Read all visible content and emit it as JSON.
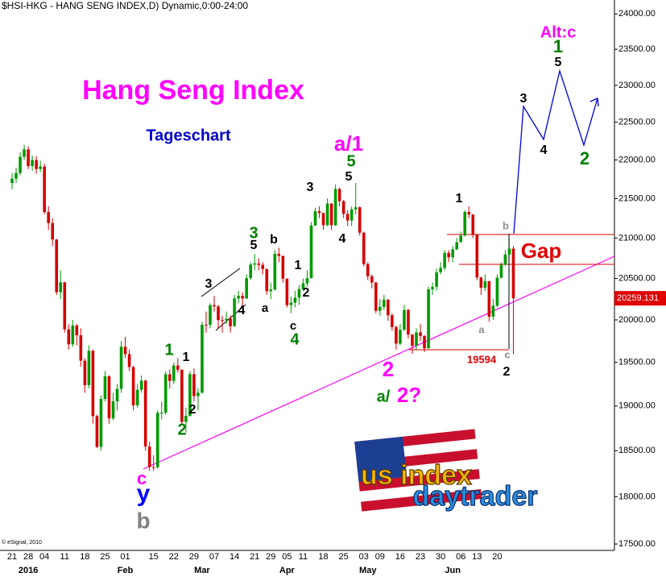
{
  "chart_data": {
    "type": "candlestick",
    "title": "$HSI-HKG - HANG SENG INDEX,D) Dynamic,0:00-24:00",
    "heading": "Hang Seng Index",
    "subheading": "Tageschart",
    "copyright": "© eSignal, 2010",
    "logo": [
      "us index",
      "daytrader"
    ],
    "categories": [
      "21",
      null,
      null,
      null,
      "28",
      null,
      null,
      null,
      "04",
      null,
      null,
      null,
      null,
      "11",
      null,
      null,
      null,
      null,
      "18",
      null,
      null,
      null,
      null,
      "25",
      null,
      null,
      null,
      null,
      "01",
      null,
      null,
      null,
      null,
      null,
      null,
      "15",
      null,
      null,
      null,
      null,
      "22",
      null,
      null,
      null,
      null,
      "29",
      null,
      null,
      null,
      null,
      "07",
      null,
      null,
      null,
      null,
      "14",
      null,
      null,
      null,
      null,
      "21",
      null,
      null,
      null,
      "29",
      null,
      null,
      null,
      "05",
      null,
      null,
      null,
      "11",
      null,
      null,
      null,
      null,
      "18",
      null,
      null,
      null,
      null,
      "25",
      null,
      null,
      null,
      null,
      "03",
      null,
      null,
      null,
      "09",
      null,
      null,
      null,
      null,
      "16",
      null,
      null,
      null,
      null,
      "23",
      null,
      null,
      null,
      null,
      "30",
      null,
      null,
      null,
      null,
      "06",
      null,
      null,
      null,
      "13",
      null,
      null,
      null,
      null,
      "20",
      null,
      null,
      null,
      null
    ],
    "months": [
      null,
      null,
      null,
      null,
      "2016",
      null,
      null,
      null,
      null,
      null,
      null,
      null,
      null,
      null,
      null,
      null,
      null,
      null,
      null,
      null,
      null,
      null,
      null,
      null,
      null,
      null,
      null,
      null,
      "Feb",
      null,
      null,
      null,
      null,
      null,
      null,
      null,
      null,
      null,
      null,
      null,
      null,
      null,
      null,
      null,
      null,
      null,
      null,
      "Mar",
      null,
      null,
      null,
      null,
      null,
      null,
      null,
      null,
      null,
      null,
      null,
      null,
      null,
      null,
      null,
      null,
      null,
      null,
      null,
      null,
      "Apr",
      null,
      null,
      null,
      null,
      null,
      null,
      null,
      null,
      null,
      null,
      null,
      null,
      null,
      null,
      null,
      null,
      null,
      null,
      null,
      "May",
      null,
      null,
      null,
      null,
      null,
      null,
      null,
      null,
      null,
      null,
      null,
      null,
      null,
      null,
      null,
      null,
      null,
      null,
      null,
      null,
      "Jun",
      null,
      null,
      null,
      null,
      null,
      null,
      null,
      null,
      null,
      null,
      null,
      null,
      null,
      null,
      null
    ],
    "series": [
      {
        "up_color": "#009a00",
        "down_color": "#d40000",
        "open": [
          21700,
          21756,
          21830,
          22041,
          22139,
          21920,
          21999,
          21882,
          21914,
          21327,
          21188,
          20981,
          20333,
          20453,
          19888,
          19711,
          19934,
          19817,
          19520,
          19237,
          19635,
          18886,
          18542,
          19080,
          19340,
          18860,
          19052,
          19195,
          19683,
          19596,
          19446,
          19007,
          19184,
          19289,
          18546,
          18320,
          18319,
          18924,
          18925,
          19363,
          19286,
          19464,
          19415,
          18820,
          18889,
          19364,
          19112,
          19151,
          19942,
          19941,
          20176,
          20161,
          19997,
          19996,
          20014,
          19925,
          20257,
          20288,
          20257,
          20504,
          20671,
          20684,
          20667,
          20616,
          20345,
          20366,
          20803,
          20777,
          20498,
          20177,
          20207,
          20266,
          20370,
          20440,
          20504,
          21158,
          21337,
          21316,
          21161,
          21436,
          21161,
          21623,
          21467,
          21304,
          21220,
          21361,
          21388,
          21067,
          20676,
          20526,
          20450,
          20109,
          20157,
          20242,
          20055,
          19915,
          19719,
          19883,
          20119,
          19826,
          19694,
          19852,
          19810,
          19664,
          20368,
          20398,
          20576,
          20629,
          20815,
          20760,
          20859,
          20947,
          21031,
          21328,
          21297,
          21042,
          20512,
          20387,
          20467,
          20038,
          20170,
          20510,
          20669,
          20795,
          20868
        ],
        "high": [
          21830,
          21900,
          22100,
          22200,
          22180,
          22060,
          22050,
          21990,
          21950,
          21400,
          21250,
          20990,
          20600,
          20460,
          19950,
          20000,
          19950,
          19900,
          19550,
          19700,
          19650,
          18900,
          19120,
          19400,
          19350,
          19150,
          19250,
          19750,
          19800,
          19650,
          19460,
          19250,
          19350,
          19300,
          18600,
          18450,
          18950,
          19050,
          19400,
          19420,
          19500,
          19550,
          19420,
          18980,
          19400,
          19430,
          19200,
          19980,
          20100,
          20200,
          20290,
          20180,
          20050,
          20100,
          20050,
          20300,
          20350,
          20330,
          20550,
          20700,
          20800,
          20750,
          20700,
          20620,
          20450,
          20850,
          20880,
          20780,
          20500,
          20280,
          20350,
          20420,
          20500,
          20600,
          21200,
          21380,
          21400,
          21320,
          21500,
          21440,
          21680,
          21640,
          21480,
          21350,
          21400,
          21700,
          21400,
          21080,
          20700,
          20550,
          20460,
          20250,
          20300,
          20250,
          20080,
          19930,
          19950,
          20180,
          20130,
          19830,
          19900,
          19950,
          19820,
          20400,
          20450,
          20620,
          20700,
          20850,
          20850,
          20900,
          21000,
          21080,
          21350,
          21400,
          21300,
          21050,
          20520,
          20550,
          20470,
          20250,
          20550,
          20700,
          20850,
          21000,
          20900
        ],
        "low": [
          21620,
          21700,
          21800,
          22000,
          21880,
          21860,
          21820,
          21840,
          21300,
          21100,
          20900,
          20300,
          20250,
          19850,
          19650,
          19680,
          19700,
          19450,
          19150,
          19200,
          18800,
          18530,
          18500,
          19050,
          18800,
          18840,
          18950,
          19150,
          19550,
          19400,
          18950,
          18980,
          19150,
          18500,
          18280,
          18280,
          18300,
          18850,
          18900,
          19200,
          19250,
          19380,
          18780,
          18700,
          18880,
          19050,
          18950,
          19140,
          19850,
          19900,
          20100,
          19900,
          19850,
          19950,
          19850,
          19920,
          20200,
          20150,
          20250,
          20480,
          20600,
          20600,
          20550,
          20300,
          20250,
          20350,
          20700,
          20450,
          20150,
          20080,
          20150,
          20180,
          20350,
          20400,
          20500,
          21150,
          21250,
          21100,
          21150,
          21100,
          21150,
          21400,
          21250,
          21150,
          21150,
          21300,
          21030,
          20650,
          20480,
          20380,
          20080,
          20050,
          20120,
          19990,
          19870,
          19650,
          19700,
          19870,
          19780,
          19600,
          19650,
          19750,
          19620,
          19660,
          20300,
          20350,
          20550,
          20600,
          20700,
          20700,
          20850,
          20950,
          21020,
          21250,
          21000,
          20480,
          20300,
          20350,
          19980,
          20000,
          20150,
          20500,
          20650,
          20750,
          19594
        ],
        "close": [
          21756,
          21830,
          22041,
          22139,
          21920,
          21999,
          21882,
          21914,
          21327,
          21188,
          20981,
          20333,
          20453,
          19888,
          19711,
          19934,
          19817,
          19520,
          19237,
          19635,
          18886,
          18542,
          19080,
          19340,
          18860,
          19052,
          19195,
          19683,
          19596,
          19446,
          19007,
          19184,
          19289,
          18546,
          18320,
          18319,
          18924,
          18925,
          19363,
          19286,
          19464,
          19415,
          18820,
          18889,
          19364,
          19112,
          19151,
          19942,
          19941,
          20176,
          20161,
          19997,
          19996,
          20014,
          19925,
          20257,
          20288,
          20257,
          20504,
          20671,
          20684,
          20667,
          20616,
          20345,
          20366,
          20803,
          20777,
          20498,
          20177,
          20207,
          20266,
          20370,
          20440,
          20504,
          21158,
          21337,
          21316,
          21161,
          21436,
          21161,
          21623,
          21467,
          21304,
          21220,
          21361,
          21388,
          21067,
          20676,
          20526,
          20450,
          20109,
          20157,
          20242,
          20055,
          19915,
          19719,
          19883,
          20119,
          19826,
          19694,
          19852,
          19810,
          19664,
          20368,
          20398,
          20576,
          20629,
          20815,
          20760,
          20859,
          20947,
          21031,
          21328,
          21297,
          21042,
          20512,
          20387,
          20467,
          20038,
          20170,
          20510,
          20669,
          20795,
          20868,
          20259
        ]
      }
    ],
    "log_scale": true,
    "ylim": [
      17450,
      24200
    ],
    "yticks": [
      {
        "value": 17500,
        "label": "17500.00"
      },
      {
        "value": 18000,
        "label": "18000.00"
      },
      {
        "value": 18500,
        "label": "18500.00"
      },
      {
        "value": 19000,
        "label": "19000.00"
      },
      {
        "value": 19500,
        "label": "19500.00"
      },
      {
        "value": 20000,
        "label": "20000.00"
      },
      {
        "value": 20500,
        "label": "20500.00"
      },
      {
        "value": 21000,
        "label": "21000.00"
      },
      {
        "value": 21500,
        "label": "21500.00"
      },
      {
        "value": 22000,
        "label": "22000.00"
      },
      {
        "value": 22500,
        "label": "22500.00"
      },
      {
        "value": 23000,
        "label": "23000.00"
      },
      {
        "value": 23500,
        "label": "23500.00"
      },
      {
        "value": 24000,
        "label": "24000.00"
      }
    ],
    "last_price": 20259.131,
    "last_price_color": "#e00000",
    "annotations": [
      {
        "text": "c",
        "color": "#ff00ff"
      },
      {
        "text": "y",
        "color": "#0000ff"
      },
      {
        "text": "b",
        "color": "#808080"
      },
      {
        "text": "1",
        "color": "#008000"
      },
      {
        "text": "2",
        "color": "#008000"
      },
      {
        "text": "1",
        "color": "#000000"
      },
      {
        "text": "2",
        "color": "#000000"
      },
      {
        "text": "3",
        "color": "#000000"
      },
      {
        "text": "4",
        "color": "#000000"
      },
      {
        "text": "3",
        "color": "#008000"
      },
      {
        "text": "5",
        "color": "#000000"
      },
      {
        "text": "b",
        "color": "#000000"
      },
      {
        "text": "a",
        "color": "#000000"
      },
      {
        "text": "1",
        "color": "#000000"
      },
      {
        "text": "2",
        "color": "#000000"
      },
      {
        "text": "c",
        "color": "#000000"
      },
      {
        "text": "4",
        "color": "#008000"
      },
      {
        "text": "3",
        "color": "#000000"
      },
      {
        "text": "4",
        "color": "#000000"
      },
      {
        "text": "5",
        "color": "#000000"
      },
      {
        "text": "5",
        "color": "#008000"
      },
      {
        "text": "a/1",
        "color": "#ff00ff"
      },
      {
        "text": "2",
        "color": "#ff00ff"
      },
      {
        "text": "a/",
        "color": "#008000"
      },
      {
        "text": "2?",
        "color": "#ff00ff"
      },
      {
        "text": "1",
        "color": "#000000"
      },
      {
        "text": "b",
        "color": "#909090"
      },
      {
        "text": "a",
        "color": "#909090"
      },
      {
        "text": "c",
        "color": "#909090"
      },
      {
        "text": "2",
        "color": "#000000"
      },
      {
        "text": "19594",
        "color": "#e00000"
      },
      {
        "text": "3",
        "color": "#000000"
      },
      {
        "text": "4",
        "color": "#000000"
      },
      {
        "text": "5",
        "color": "#000000"
      },
      {
        "text": "1",
        "color": "#008000"
      },
      {
        "text": "Alt:c",
        "color": "#ff00ff"
      },
      {
        "text": "2",
        "color": "#008000"
      },
      {
        "text": "Gap",
        "color": "#e00000"
      }
    ]
  }
}
